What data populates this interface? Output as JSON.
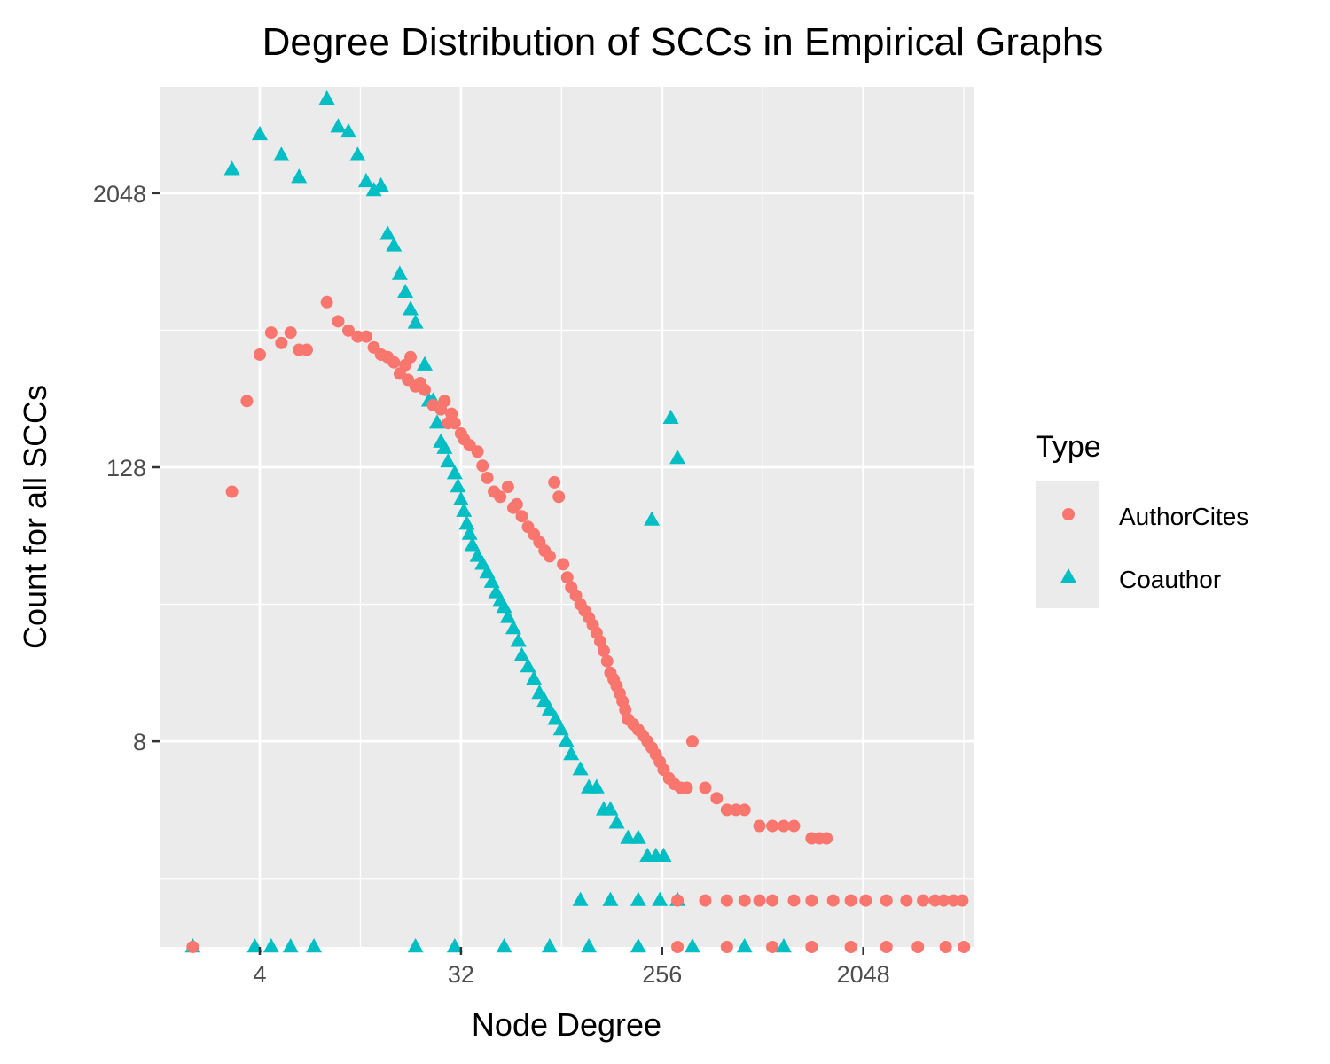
{
  "chart_data": {
    "type": "scatter",
    "title": "Degree Distribution of SCCs in Empirical Graphs",
    "xlabel": "Node Degree",
    "ylabel": "Count for all SCCs",
    "x_scale": "log2",
    "y_scale": "log2",
    "xlim": [
      1.42,
      6400
    ],
    "ylim": [
      1,
      6000
    ],
    "x_ticks": [
      4,
      32,
      256,
      2048
    ],
    "y_ticks": [
      8,
      128,
      2048
    ],
    "grid": true,
    "legend": {
      "title": "Type",
      "position": "right"
    },
    "series": [
      {
        "name": "AuthorCites",
        "marker": "circle",
        "color": "#F8766D",
        "points": [
          [
            2,
            1
          ],
          [
            3,
            100
          ],
          [
            3.5,
            250
          ],
          [
            4,
            400
          ],
          [
            4.5,
            500
          ],
          [
            5,
            450
          ],
          [
            5.5,
            500
          ],
          [
            6,
            420
          ],
          [
            6.5,
            420
          ],
          [
            8,
            680
          ],
          [
            9,
            560
          ],
          [
            10,
            510
          ],
          [
            11,
            480
          ],
          [
            12,
            480
          ],
          [
            13,
            430
          ],
          [
            14,
            400
          ],
          [
            15,
            390
          ],
          [
            16,
            370
          ],
          [
            17,
            330
          ],
          [
            18,
            360
          ],
          [
            18.5,
            310
          ],
          [
            19,
            390
          ],
          [
            20,
            290
          ],
          [
            21,
            300
          ],
          [
            22,
            280
          ],
          [
            24,
            240
          ],
          [
            26,
            230
          ],
          [
            27,
            250
          ],
          [
            28,
            200
          ],
          [
            29,
            220
          ],
          [
            30,
            200
          ],
          [
            32,
            180
          ],
          [
            33,
            170
          ],
          [
            35,
            160
          ],
          [
            38,
            150
          ],
          [
            40,
            130
          ],
          [
            42,
            115
          ],
          [
            45,
            100
          ],
          [
            48,
            95
          ],
          [
            52,
            105
          ],
          [
            55,
            85
          ],
          [
            57,
            88
          ],
          [
            60,
            78
          ],
          [
            64,
            70
          ],
          [
            68,
            65
          ],
          [
            72,
            60
          ],
          [
            76,
            55
          ],
          [
            80,
            52
          ],
          [
            84,
            110
          ],
          [
            88,
            95
          ],
          [
            92,
            48
          ],
          [
            96,
            42
          ],
          [
            100,
            38
          ],
          [
            105,
            35
          ],
          [
            110,
            32
          ],
          [
            115,
            30
          ],
          [
            120,
            28
          ],
          [
            125,
            26
          ],
          [
            130,
            24
          ],
          [
            135,
            22
          ],
          [
            140,
            20
          ],
          [
            145,
            18
          ],
          [
            150,
            16
          ],
          [
            155,
            15
          ],
          [
            160,
            14
          ],
          [
            165,
            13
          ],
          [
            170,
            12
          ],
          [
            175,
            11
          ],
          [
            180,
            10
          ],
          [
            190,
            9.5
          ],
          [
            200,
            9
          ],
          [
            210,
            8.5
          ],
          [
            220,
            8
          ],
          [
            230,
            7.5
          ],
          [
            240,
            7
          ],
          [
            250,
            6.5
          ],
          [
            260,
            6
          ],
          [
            275,
            5.5
          ],
          [
            290,
            5.2
          ],
          [
            310,
            5
          ],
          [
            330,
            5
          ],
          [
            350,
            8
          ],
          [
            400,
            5
          ],
          [
            450,
            4.5
          ],
          [
            500,
            4
          ],
          [
            550,
            4
          ],
          [
            600,
            4
          ],
          [
            700,
            3.4
          ],
          [
            800,
            3.4
          ],
          [
            900,
            3.4
          ],
          [
            1000,
            3.4
          ],
          [
            1200,
            3
          ],
          [
            1300,
            3
          ],
          [
            1400,
            3
          ],
          [
            300,
            1.6
          ],
          [
            400,
            1.6
          ],
          [
            500,
            1.6
          ],
          [
            600,
            1.6
          ],
          [
            700,
            1.6
          ],
          [
            800,
            1.6
          ],
          [
            1000,
            1.6
          ],
          [
            1200,
            1.6
          ],
          [
            1500,
            1.6
          ],
          [
            1800,
            1.6
          ],
          [
            2100,
            1.6
          ],
          [
            2600,
            1.6
          ],
          [
            3200,
            1.6
          ],
          [
            3800,
            1.6
          ],
          [
            4300,
            1.6
          ],
          [
            4700,
            1.6
          ],
          [
            5200,
            1.6
          ],
          [
            5700,
            1.6
          ],
          [
            300,
            1
          ],
          [
            500,
            1
          ],
          [
            800,
            1
          ],
          [
            1200,
            1
          ],
          [
            1800,
            1
          ],
          [
            2600,
            1
          ],
          [
            3600,
            1
          ],
          [
            4800,
            1
          ],
          [
            5800,
            1
          ]
        ]
      },
      {
        "name": "Coauthor",
        "marker": "triangle",
        "color": "#00BFC4",
        "points": [
          [
            2,
            1
          ],
          [
            3,
            2600
          ],
          [
            3.8,
            1
          ],
          [
            4,
            3700
          ],
          [
            4.5,
            1
          ],
          [
            5,
            3000
          ],
          [
            5.5,
            1
          ],
          [
            6,
            2400
          ],
          [
            7,
            1
          ],
          [
            8,
            5300
          ],
          [
            9,
            4000
          ],
          [
            10,
            3800
          ],
          [
            11,
            3000
          ],
          [
            12,
            2300
          ],
          [
            13,
            2100
          ],
          [
            14,
            2200
          ],
          [
            15,
            1350
          ],
          [
            16,
            1200
          ],
          [
            17,
            900
          ],
          [
            18,
            750
          ],
          [
            19,
            630
          ],
          [
            20,
            550
          ],
          [
            22,
            360
          ],
          [
            23,
            250
          ],
          [
            24,
            250
          ],
          [
            25,
            200
          ],
          [
            26,
            165
          ],
          [
            27,
            155
          ],
          [
            28,
            135
          ],
          [
            30,
            120
          ],
          [
            31,
            105
          ],
          [
            32,
            92
          ],
          [
            33,
            82
          ],
          [
            34,
            72
          ],
          [
            35,
            65
          ],
          [
            36,
            58
          ],
          [
            38,
            52
          ],
          [
            40,
            48
          ],
          [
            42,
            44
          ],
          [
            44,
            40
          ],
          [
            46,
            36
          ],
          [
            48,
            33
          ],
          [
            50,
            31
          ],
          [
            52,
            28
          ],
          [
            55,
            25
          ],
          [
            58,
            22
          ],
          [
            60,
            19
          ],
          [
            64,
            17
          ],
          [
            68,
            15
          ],
          [
            72,
            13
          ],
          [
            76,
            12
          ],
          [
            80,
            11
          ],
          [
            85,
            10
          ],
          [
            90,
            9
          ],
          [
            95,
            8
          ],
          [
            100,
            7
          ],
          [
            110,
            6
          ],
          [
            120,
            5
          ],
          [
            130,
            5
          ],
          [
            140,
            4
          ],
          [
            150,
            4
          ],
          [
            160,
            3.5
          ],
          [
            180,
            3
          ],
          [
            200,
            3
          ],
          [
            220,
            2.5
          ],
          [
            240,
            2.5
          ],
          [
            260,
            2.5
          ],
          [
            230,
            75
          ],
          [
            280,
            210
          ],
          [
            300,
            140
          ],
          [
            110,
            1.6
          ],
          [
            150,
            1.6
          ],
          [
            200,
            1.6
          ],
          [
            250,
            1.6
          ],
          [
            300,
            1.6
          ],
          [
            20,
            1
          ],
          [
            30,
            1
          ],
          [
            50,
            1
          ],
          [
            80,
            1
          ],
          [
            120,
            1
          ],
          [
            200,
            1
          ],
          [
            350,
            1
          ],
          [
            600,
            1
          ],
          [
            900,
            1
          ]
        ]
      }
    ]
  }
}
